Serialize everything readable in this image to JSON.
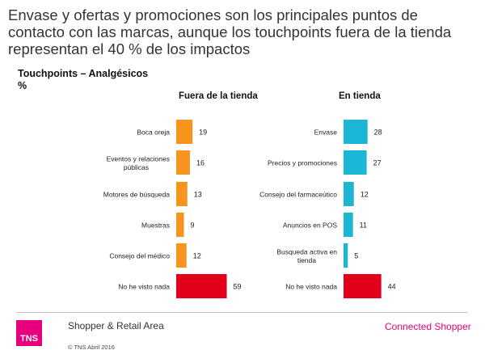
{
  "headline": "Envase y ofertas y promociones son los principales puntos de contacto con las marcas, aunque los touchpoints fuera de la tienda representan el 40 % de los impactos",
  "subtitle_line1": "Touchpoints – Analgésicos",
  "subtitle_line2": "%",
  "footer": {
    "logo_text": "TNS",
    "area": "Shopper & Retail Area",
    "copyright": "© TNS Abril 2016",
    "brand": "Connected Shopper"
  },
  "colors": {
    "orange": "#f7941d",
    "red": "#e2001a",
    "cyan": "#1bb5d6",
    "brand_pink": "#e6007e"
  },
  "chart_data": [
    {
      "type": "bar",
      "orientation": "horizontal",
      "title": "Fuera de la tienda",
      "categories": [
        [
          "Boca oreja"
        ],
        [
          "Eventos y relaciones",
          "públicas"
        ],
        [
          "Motores de búsqueda"
        ],
        [
          "Muestras"
        ],
        [
          "Consejo del médico"
        ],
        [
          "No he visto nada"
        ]
      ],
      "values": [
        19,
        16,
        13,
        9,
        12,
        59
      ],
      "bar_colors": [
        "orange",
        "orange",
        "orange",
        "orange",
        "orange",
        "red"
      ]
    },
    {
      "type": "bar",
      "orientation": "horizontal",
      "title": "En tienda",
      "categories": [
        [
          "Envase"
        ],
        [
          "Precios y promociones"
        ],
        [
          "Consejo del farmaceútico"
        ],
        [
          "Anuncios en POS"
        ],
        [
          "Busqueda activa en",
          "tienda"
        ],
        [
          "No he visto nada"
        ]
      ],
      "values": [
        28,
        27,
        12,
        11,
        5,
        44
      ],
      "bar_colors": [
        "cyan",
        "cyan",
        "cyan",
        "cyan",
        "cyan",
        "red"
      ]
    }
  ]
}
